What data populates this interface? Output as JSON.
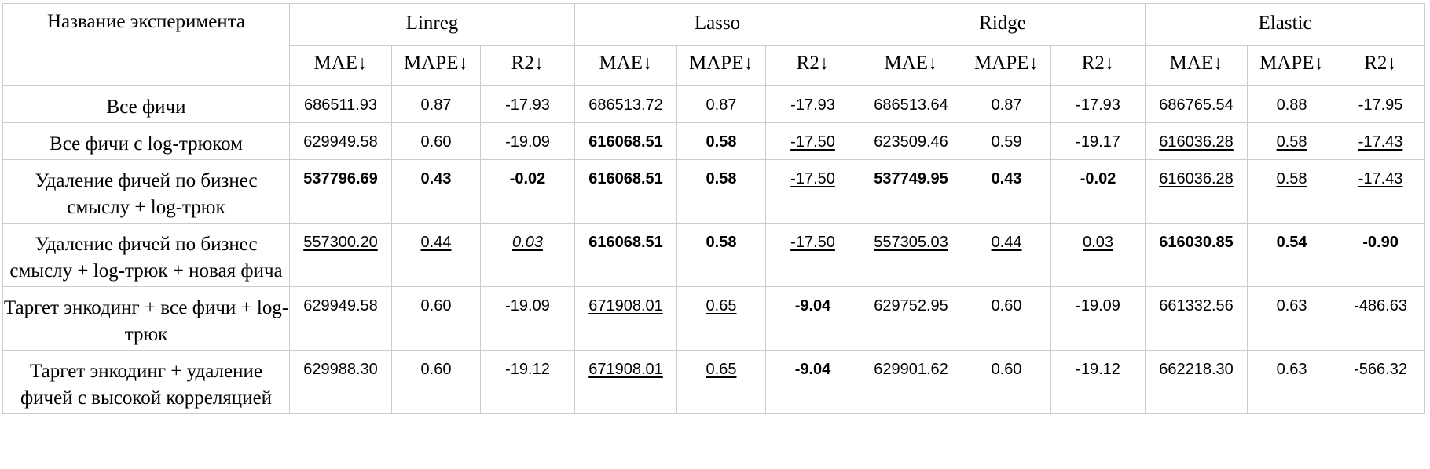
{
  "header": {
    "name_col": "Название эксперимента",
    "models": [
      "Linreg",
      "Lasso",
      "Ridge",
      "Elastic"
    ],
    "metrics": [
      "MAE↓",
      "MAPE↓",
      "R2↓"
    ]
  },
  "rows": [
    {
      "label": "Все фичи",
      "cells": [
        {
          "v": "686511.93",
          "s": ""
        },
        {
          "v": "0.87",
          "s": ""
        },
        {
          "v": "-17.93",
          "s": ""
        },
        {
          "v": "686513.72",
          "s": ""
        },
        {
          "v": "0.87",
          "s": ""
        },
        {
          "v": "-17.93",
          "s": ""
        },
        {
          "v": "686513.64",
          "s": ""
        },
        {
          "v": "0.87",
          "s": ""
        },
        {
          "v": "-17.93",
          "s": ""
        },
        {
          "v": "686765.54",
          "s": ""
        },
        {
          "v": "0.88",
          "s": ""
        },
        {
          "v": "-17.95",
          "s": ""
        }
      ]
    },
    {
      "label": "Все фичи с log-трюком",
      "cells": [
        {
          "v": "629949.58",
          "s": ""
        },
        {
          "v": "0.60",
          "s": ""
        },
        {
          "v": "-19.09",
          "s": ""
        },
        {
          "v": "616068.51",
          "s": "b"
        },
        {
          "v": "0.58",
          "s": "b"
        },
        {
          "v": "-17.50",
          "s": "u"
        },
        {
          "v": "623509.46",
          "s": ""
        },
        {
          "v": "0.59",
          "s": ""
        },
        {
          "v": "-19.17",
          "s": ""
        },
        {
          "v": "616036.28",
          "s": "u"
        },
        {
          "v": "0.58",
          "s": "u"
        },
        {
          "v": "-17.43",
          "s": "u"
        }
      ]
    },
    {
      "label": "Удаление фичей по бизнес смыслу +  log-трюк",
      "cells": [
        {
          "v": "537796.69",
          "s": "b"
        },
        {
          "v": "0.43",
          "s": "b"
        },
        {
          "v": "-0.02",
          "s": "b"
        },
        {
          "v": "616068.51",
          "s": "b"
        },
        {
          "v": "0.58",
          "s": "b"
        },
        {
          "v": "-17.50",
          "s": "u"
        },
        {
          "v": "537749.95",
          "s": "b"
        },
        {
          "v": "0.43",
          "s": "b"
        },
        {
          "v": "-0.02",
          "s": "b"
        },
        {
          "v": "616036.28",
          "s": "u"
        },
        {
          "v": "0.58",
          "s": "u"
        },
        {
          "v": "-17.43",
          "s": "u"
        }
      ]
    },
    {
      "label": "Удаление фичей по бизнес смыслу +  log-трюк + новая фича",
      "cells": [
        {
          "v": "557300.20",
          "s": "u"
        },
        {
          "v": "0.44",
          "s": "u"
        },
        {
          "v": "0.03",
          "s": "u i"
        },
        {
          "v": "616068.51",
          "s": "b"
        },
        {
          "v": "0.58",
          "s": "b"
        },
        {
          "v": "-17.50",
          "s": "u"
        },
        {
          "v": "557305.03",
          "s": "u"
        },
        {
          "v": "0.44",
          "s": "u"
        },
        {
          "v": "0.03",
          "s": "u"
        },
        {
          "v": "616030.85",
          "s": "b"
        },
        {
          "v": "0.54",
          "s": "b"
        },
        {
          "v": "-0.90",
          "s": "b"
        }
      ]
    },
    {
      "label": "Таргет энкодинг + все фичи + log-трюк",
      "cells": [
        {
          "v": "629949.58",
          "s": ""
        },
        {
          "v": "0.60",
          "s": ""
        },
        {
          "v": "-19.09",
          "s": ""
        },
        {
          "v": "671908.01",
          "s": "u"
        },
        {
          "v": "0.65",
          "s": "u"
        },
        {
          "v": "-9.04",
          "s": "b"
        },
        {
          "v": "629752.95",
          "s": ""
        },
        {
          "v": "0.60",
          "s": ""
        },
        {
          "v": "-19.09",
          "s": ""
        },
        {
          "v": "661332.56",
          "s": ""
        },
        {
          "v": "0.63",
          "s": ""
        },
        {
          "v": "-486.63",
          "s": ""
        }
      ]
    },
    {
      "label": "Таргет энкодинг + удаление фичей с высокой корреляцией",
      "cells": [
        {
          "v": "629988.30",
          "s": ""
        },
        {
          "v": "0.60",
          "s": ""
        },
        {
          "v": "-19.12",
          "s": ""
        },
        {
          "v": "671908.01",
          "s": "u"
        },
        {
          "v": "0.65",
          "s": "u"
        },
        {
          "v": "-9.04",
          "s": "b"
        },
        {
          "v": "629901.62",
          "s": ""
        },
        {
          "v": "0.60",
          "s": ""
        },
        {
          "v": "-19.12",
          "s": ""
        },
        {
          "v": "662218.30",
          "s": ""
        },
        {
          "v": "0.63",
          "s": ""
        },
        {
          "v": "-566.32",
          "s": ""
        }
      ]
    }
  ]
}
